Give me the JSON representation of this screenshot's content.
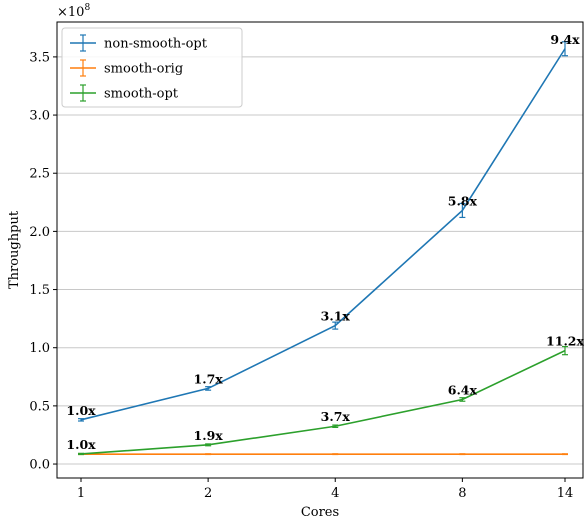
{
  "chart_data": {
    "type": "line",
    "x": [
      1,
      2,
      4,
      8,
      14
    ],
    "x_tick_labels": [
      "1",
      "2",
      "4",
      "8",
      "14"
    ],
    "x_scale": "log",
    "xlabel": "Cores",
    "ylabel": "Throughput",
    "y_scale_factor_label": "×10",
    "y_scale_factor_exponent": "8",
    "y_scale_factor": 100000000,
    "ylim": [
      -0.12,
      3.8
    ],
    "y_ticks": [
      0.0,
      0.5,
      1.0,
      1.5,
      2.0,
      2.5,
      3.0,
      3.5
    ],
    "y_tick_labels": [
      "0.0",
      "0.5",
      "1.0",
      "1.5",
      "2.0",
      "2.5",
      "3.0",
      "3.5"
    ],
    "grid": "horizontal",
    "legend_position": "top-left",
    "series": [
      {
        "name": "non-smooth-opt",
        "color": "#1f77b4",
        "values": [
          0.38,
          0.65,
          1.19,
          2.18,
          3.57
        ],
        "errors": [
          0.01,
          0.015,
          0.03,
          0.06,
          0.06
        ],
        "labels": [
          "1.0x",
          "1.7x",
          "3.1x",
          "5.8x",
          "9.4x"
        ]
      },
      {
        "name": "smooth-orig",
        "color": "#ff7f0e",
        "values": [
          0.085,
          0.085,
          0.085,
          0.085,
          0.085
        ],
        "errors": [
          0.003,
          0.003,
          0.003,
          0.003,
          0.003
        ],
        "labels": []
      },
      {
        "name": "smooth-opt",
        "color": "#2ca02c",
        "values": [
          0.087,
          0.165,
          0.325,
          0.555,
          0.975
        ],
        "errors": [
          0.005,
          0.008,
          0.01,
          0.015,
          0.035
        ],
        "labels": [
          "1.0x",
          "1.9x",
          "3.7x",
          "6.4x",
          "11.2x"
        ]
      }
    ]
  }
}
